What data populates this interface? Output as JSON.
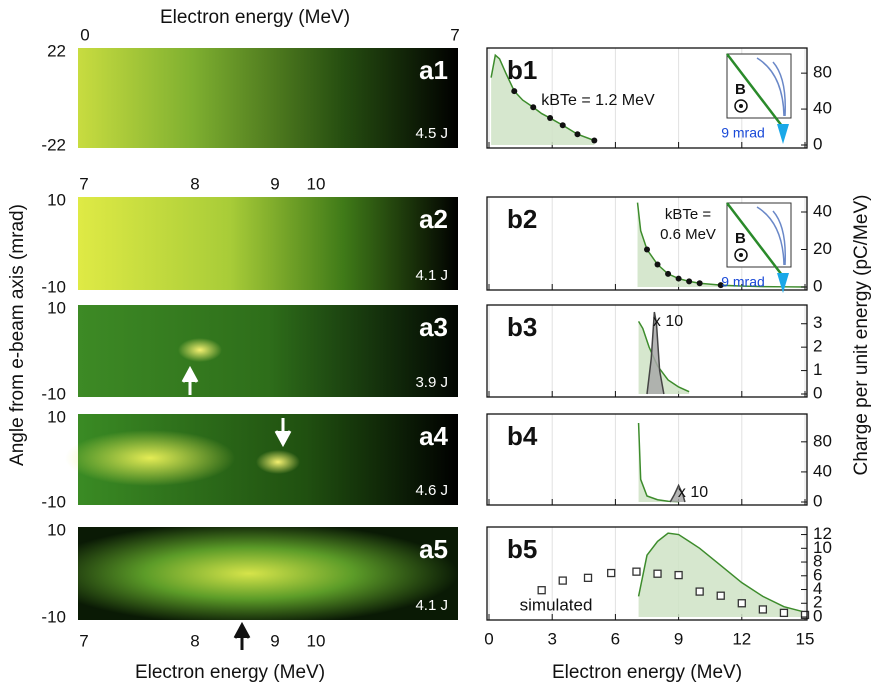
{
  "figure": {
    "left_top_xlabel": "Electron energy (MeV)",
    "left_xlabel": "Electron energy (MeV)",
    "left_ylabel": "Angle from e-beam axis (mrad)",
    "right_ylabel": "Charge per unit energy (pC/MeV)"
  },
  "images": [
    {
      "label": "a1",
      "energy": "4.5 J",
      "top_ticks": [
        0,
        7
      ],
      "yticks": [
        22,
        -22
      ]
    },
    {
      "label": "a2",
      "energy": "4.1 J",
      "top_ticks": [
        7,
        8,
        9,
        10
      ],
      "yticks": [
        10,
        -10
      ]
    },
    {
      "label": "a3",
      "energy": "3.9 J",
      "yticks": [
        10,
        -10
      ]
    },
    {
      "label": "a4",
      "energy": "4.6 J",
      "yticks": [
        10,
        -10
      ]
    },
    {
      "label": "a5",
      "energy": "4.1 J",
      "yticks": [
        10,
        -10
      ],
      "bottom_ticks": [
        7,
        8,
        9,
        10
      ]
    }
  ],
  "chart_data": [
    {
      "type": "line",
      "title": "b1",
      "annotation": "kBTe = 1.2 MeV",
      "inset": {
        "field": "B",
        "angle": "9 mrad"
      },
      "ylim": [
        0,
        108
      ],
      "yticks": [
        0,
        40,
        80
      ],
      "series": [
        {
          "color": "#3d8c2c",
          "fill": "#cfe3c6",
          "x": [
            0.1,
            0.3,
            0.5,
            0.8,
            1.2,
            1.6,
            2.1,
            2.5,
            2.9,
            3.5,
            4.2,
            5.0
          ],
          "values": [
            75,
            100,
            96,
            80,
            60,
            50,
            42,
            35,
            30,
            22,
            12,
            5
          ]
        },
        {
          "color": "#111111",
          "marker": "dot",
          "x": [
            1.2,
            2.1,
            2.9,
            3.5,
            4.2,
            5.0
          ],
          "values": [
            60,
            42,
            30,
            22,
            12,
            5
          ]
        }
      ]
    },
    {
      "type": "line",
      "title": "b2",
      "annotation": [
        "kBTe =",
        "0.6 MeV"
      ],
      "inset": {
        "field": "B",
        "angle": "9 mrad"
      },
      "ylim": [
        0,
        48
      ],
      "yticks": [
        0,
        20,
        40
      ],
      "series": [
        {
          "color": "#3d8c2c",
          "fill": "#cfe3c6",
          "x": [
            7.05,
            7.2,
            7.5,
            8,
            8.5,
            9,
            9.5,
            10,
            11,
            12,
            13,
            14,
            15
          ],
          "values": [
            45,
            30,
            20,
            12,
            7,
            4.5,
            3,
            2,
            1,
            0.5,
            0.2,
            0.1,
            0
          ]
        },
        {
          "color": "#111111",
          "marker": "dot",
          "x": [
            7.5,
            8,
            8.5,
            9,
            9.5,
            10,
            11
          ],
          "values": [
            20,
            12,
            7,
            4.5,
            3,
            2,
            1
          ]
        }
      ]
    },
    {
      "type": "line",
      "title": "b3",
      "annotation": "x 10",
      "ylim": [
        0,
        3.8
      ],
      "yticks": [
        0,
        1,
        2,
        3
      ],
      "series": [
        {
          "color": "#3d8c2c",
          "fill": "#cfe3c6",
          "x": [
            7.1,
            7.3,
            7.6,
            8,
            8.5,
            9,
            9.5
          ],
          "values": [
            3.1,
            2.8,
            2.0,
            1.2,
            0.6,
            0.3,
            0.1
          ]
        },
        {
          "color": "#444444",
          "fill": "#a8a8a8",
          "x": [
            7.5,
            7.7,
            7.85,
            7.95,
            8.1,
            8.3
          ],
          "values": [
            0,
            1.5,
            3.5,
            3.0,
            1,
            0
          ]
        }
      ]
    },
    {
      "type": "line",
      "title": "b4",
      "annotation": "x 10",
      "ylim": [
        0,
        117
      ],
      "yticks": [
        0,
        40,
        80
      ],
      "series": [
        {
          "color": "#3d8c2c",
          "fill": "#cfe3c6",
          "x": [
            7.1,
            7.2,
            7.5,
            8,
            8.5,
            9
          ],
          "values": [
            105,
            30,
            8,
            3,
            1,
            0.5
          ]
        },
        {
          "color": "#444444",
          "fill": "#a8a8a8",
          "x": [
            8.6,
            8.8,
            9.0,
            9.2,
            9.3
          ],
          "values": [
            0,
            10,
            22,
            10,
            0
          ]
        }
      ]
    },
    {
      "type": "line",
      "title": "b5",
      "xlabel": "Electron energy (MeV)",
      "xlim": [
        0,
        15
      ],
      "xticks": [
        0,
        3,
        6,
        9,
        12,
        15
      ],
      "ylim": [
        0,
        13.1
      ],
      "yticks": [
        0,
        2,
        4,
        6,
        8,
        10,
        12
      ],
      "series": [
        {
          "color": "#3d8c2c",
          "fill": "#cfe3c6",
          "x": [
            7.1,
            7.5,
            8,
            8.5,
            9,
            9.5,
            10,
            11,
            12,
            13,
            14,
            15
          ],
          "values": [
            3,
            9,
            11,
            12.2,
            12,
            11,
            10,
            7.5,
            5,
            3,
            1.5,
            0.7
          ]
        },
        {
          "name": "simulated",
          "color": "#333333",
          "marker": "square",
          "x": [
            2.5,
            3.5,
            4.7,
            5.8,
            7,
            8,
            9,
            10,
            11,
            12,
            13,
            14,
            15
          ],
          "values": [
            3.9,
            5.3,
            5.7,
            6.4,
            6.6,
            6.3,
            6.1,
            3.7,
            3.1,
            2,
            1.1,
            0.6,
            0.3
          ]
        }
      ]
    }
  ]
}
